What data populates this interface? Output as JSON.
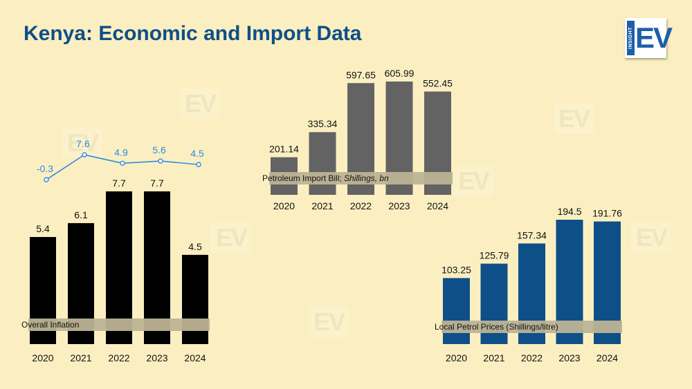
{
  "title": "Kenya: Economic and Import Data",
  "logo": {
    "side_text": "INSIGHT",
    "mark": "EV"
  },
  "colors": {
    "background": "#fbefc1",
    "title": "#0e4f87",
    "inflation_bars": "#000000",
    "gdp_line": "#2c8be0",
    "petroleum_bars": "#636363",
    "petrol_price_bars": "#0e4f87",
    "band": "#bdb395"
  },
  "chart_data": [
    {
      "type": "bar",
      "categories": [
        "2020",
        "2021",
        "2022",
        "2023",
        "2024"
      ],
      "values": [
        5.4,
        6.1,
        7.7,
        7.7,
        4.5
      ],
      "label": "Overall Inflation",
      "ylim": [
        0,
        7.7
      ]
    },
    {
      "type": "line",
      "categories": [
        "2020",
        "2021",
        "2022",
        "2023",
        "2024"
      ],
      "values": [
        -0.3,
        7.6,
        4.9,
        5.6,
        4.5
      ]
    },
    {
      "type": "bar",
      "categories": [
        "2020",
        "2021",
        "2022",
        "2023",
        "2024"
      ],
      "values": [
        201.14,
        335.34,
        597.65,
        605.99,
        552.45
      ],
      "label": "Petroleum Import Bill; ",
      "label_italic": "Shillings, bn"
    },
    {
      "type": "bar",
      "categories": [
        "2020",
        "2021",
        "2022",
        "2023",
        "2024"
      ],
      "values": [
        103.25,
        125.79,
        157.34,
        194.5,
        191.76
      ],
      "label": "Local Petrol Prices (Shillings/litre)"
    }
  ]
}
